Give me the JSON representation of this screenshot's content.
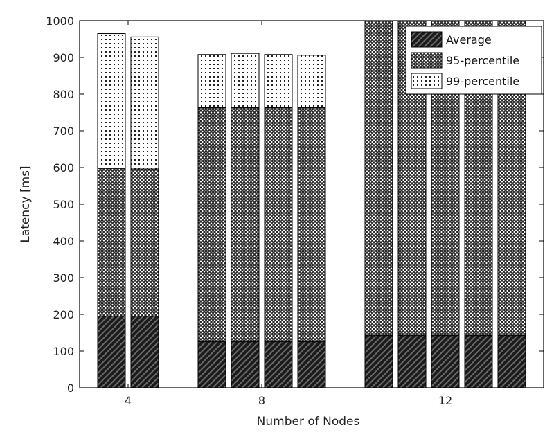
{
  "chart_data": {
    "type": "bar",
    "stacked": true,
    "title": "",
    "xlabel": "Number of Nodes",
    "ylabel": "Latency [ms]",
    "ylim": [
      0,
      1000
    ],
    "yticks": [
      0,
      100,
      200,
      300,
      400,
      500,
      600,
      700,
      800,
      900,
      1000
    ],
    "legend_position": "top-right",
    "groups": [
      {
        "label": "4",
        "bars": [
          {
            "average": 195,
            "p95": 598,
            "p99": 965
          },
          {
            "average": 195,
            "p95": 596,
            "p99": 956
          }
        ]
      },
      {
        "label": "8",
        "bars": [
          {
            "average": 125,
            "p95": 763,
            "p99": 908
          },
          {
            "average": 125,
            "p95": 763,
            "p99": 911
          },
          {
            "average": 125,
            "p95": 763,
            "p99": 908
          },
          {
            "average": 125,
            "p95": 763,
            "p99": 906
          }
        ]
      },
      {
        "label": "12",
        "bars": [
          {
            "average": 142,
            "p95": 1000,
            "p99": 1000
          },
          {
            "average": 142,
            "p95": 1000,
            "p99": 1000
          },
          {
            "average": 142,
            "p95": 1000,
            "p99": 1000
          },
          {
            "average": 142,
            "p95": 1000,
            "p99": 1000
          },
          {
            "average": 142,
            "p95": 1000,
            "p99": 1000
          }
        ]
      }
    ],
    "series": [
      {
        "name": "Average",
        "key": "average"
      },
      {
        "name": "95-percentile",
        "key": "p95"
      },
      {
        "name": "99-percentile",
        "key": "p99"
      }
    ]
  }
}
